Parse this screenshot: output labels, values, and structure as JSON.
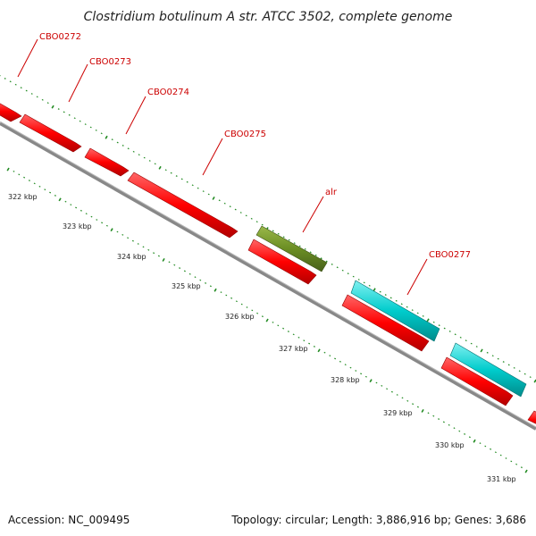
{
  "title": "Clostridium botulinum A str. ATCC 3502, complete genome",
  "footer": {
    "accession": "Accession: NC_009495",
    "summary": "Topology: circular; Length: 3,886,916 bp; Genes: 3,686"
  },
  "colors": {
    "gene_red": "#ff0000",
    "gene_cyan": "#00cccc",
    "gene_olive": "#6b8e23",
    "backbone": "#888888",
    "ticks": "#228b22",
    "labels": "#cc0000"
  },
  "labels": [
    {
      "id": "cbo0272",
      "text": "CBO0272"
    },
    {
      "id": "cbo0273",
      "text": "CBO0273"
    },
    {
      "id": "cbo0274",
      "text": "CBO0274"
    },
    {
      "id": "cbo0275",
      "text": "CBO0275"
    },
    {
      "id": "alr",
      "text": "alr"
    },
    {
      "id": "cbo0277",
      "text": "CBO0277"
    }
  ],
  "scale": [
    "322 kbp",
    "323 kbp",
    "324 kbp",
    "325 kbp",
    "326 kbp",
    "327 kbp",
    "328 kbp",
    "329 kbp",
    "330 kbp",
    "331 kbp"
  ]
}
